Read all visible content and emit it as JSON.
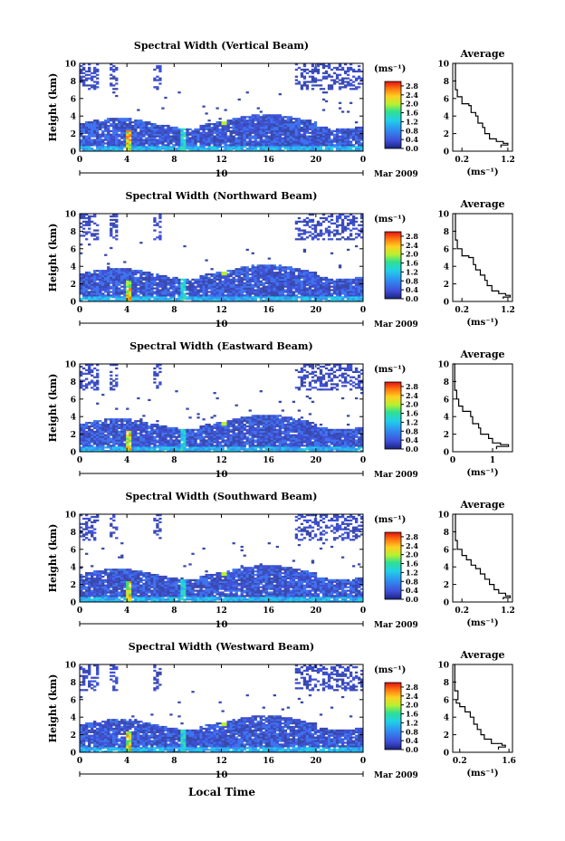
{
  "xlabel_bottom": "Local Time",
  "chart_data": [
    {
      "type": "heatmap",
      "title": "Spectral Width (Vertical Beam)",
      "ylabel": "Height (km)",
      "xlim": [
        0,
        24
      ],
      "ylim": [
        0,
        10
      ],
      "xticks": [
        "0",
        "4",
        "8",
        "12",
        "16",
        "20",
        "0"
      ],
      "yticks": [
        "0",
        "2",
        "4",
        "6",
        "8",
        "10"
      ],
      "date_center": "10",
      "date_right": "Mar 2009",
      "colorbar": {
        "unit": "(ms⁻¹)",
        "ticks": [
          "0.0",
          "0.4",
          "0.8",
          "1.2",
          "1.6",
          "2.0",
          "2.4",
          "2.8"
        ],
        "range": [
          0,
          3.0
        ]
      },
      "profile": {
        "title": "Average",
        "xlabel": "(ms⁻¹)",
        "xticks": [
          "0.2",
          "1.2"
        ],
        "yticks": [
          "0",
          "2",
          "4",
          "6",
          "8",
          "10"
        ],
        "xlim": [
          0,
          1.3
        ],
        "points": [
          [
            0.05,
            10
          ],
          [
            0.06,
            7
          ],
          [
            0.1,
            6.2
          ],
          [
            0.2,
            5.4
          ],
          [
            0.35,
            5.2
          ],
          [
            0.4,
            4.4
          ],
          [
            0.5,
            4.0
          ],
          [
            0.55,
            3.2
          ],
          [
            0.65,
            2.7
          ],
          [
            0.7,
            2.0
          ],
          [
            0.8,
            1.4
          ],
          [
            0.95,
            1.1
          ],
          [
            1.1,
            0.9
          ],
          [
            1.2,
            0.7
          ],
          [
            1.05,
            0.4
          ]
        ]
      }
    },
    {
      "type": "heatmap",
      "title": "Spectral Width (Northward Beam)",
      "ylabel": "Height (km)",
      "xlim": [
        0,
        24
      ],
      "ylim": [
        0,
        10
      ],
      "xticks": [
        "0",
        "4",
        "8",
        "12",
        "16",
        "20",
        "0"
      ],
      "yticks": [
        "0",
        "2",
        "4",
        "6",
        "8",
        "10"
      ],
      "date_center": "10",
      "date_right": "Mar 2009",
      "colorbar": {
        "unit": "(ms⁻¹)",
        "ticks": [
          "0.0",
          "0.4",
          "0.8",
          "1.2",
          "1.6",
          "2.0",
          "2.4",
          "2.8"
        ],
        "range": [
          0,
          3.0
        ]
      },
      "profile": {
        "title": "Average",
        "xlabel": "(ms⁻¹)",
        "xticks": [
          "0.2",
          "1.2"
        ],
        "yticks": [
          "0",
          "2",
          "4",
          "6",
          "8",
          "10"
        ],
        "xlim": [
          0,
          1.3
        ],
        "points": [
          [
            0.05,
            10
          ],
          [
            0.06,
            7
          ],
          [
            0.1,
            6.0
          ],
          [
            0.2,
            5.2
          ],
          [
            0.35,
            5.0
          ],
          [
            0.45,
            4.2
          ],
          [
            0.5,
            3.6
          ],
          [
            0.6,
            3.0
          ],
          [
            0.7,
            2.4
          ],
          [
            0.75,
            1.8
          ],
          [
            0.85,
            1.2
          ],
          [
            1.0,
            0.9
          ],
          [
            1.15,
            0.7
          ],
          [
            1.25,
            0.5
          ],
          [
            1.1,
            0.3
          ]
        ]
      }
    },
    {
      "type": "heatmap",
      "title": "Spectral Width (Eastward Beam)",
      "ylabel": "Height (km)",
      "xlim": [
        0,
        24
      ],
      "ylim": [
        0,
        10
      ],
      "xticks": [
        "0",
        "4",
        "8",
        "12",
        "16",
        "20",
        "0"
      ],
      "yticks": [
        "0",
        "2",
        "4",
        "6",
        "8",
        "10"
      ],
      "date_center": "10",
      "date_right": "Mar 2009",
      "colorbar": {
        "unit": "(ms⁻¹)",
        "ticks": [
          "0.0",
          "0.4",
          "0.8",
          "1.2",
          "1.6",
          "2.0",
          "2.4",
          "2.8"
        ],
        "range": [
          0,
          3.0
        ]
      },
      "profile": {
        "title": "Average",
        "xlabel": "(ms⁻¹)",
        "xticks": [
          "0",
          "1"
        ],
        "yticks": [
          "0",
          "2",
          "4",
          "6",
          "8",
          "10"
        ],
        "xlim": [
          0,
          1.5
        ],
        "points": [
          [
            0.02,
            10
          ],
          [
            0.05,
            7
          ],
          [
            0.1,
            6.0
          ],
          [
            0.15,
            5.2
          ],
          [
            0.25,
            4.6
          ],
          [
            0.45,
            4.0
          ],
          [
            0.5,
            3.2
          ],
          [
            0.65,
            2.7
          ],
          [
            0.7,
            2.0
          ],
          [
            0.9,
            1.5
          ],
          [
            1.0,
            1.0
          ],
          [
            1.2,
            0.8
          ],
          [
            1.4,
            0.6
          ],
          [
            1.1,
            0.3
          ]
        ]
      }
    },
    {
      "type": "heatmap",
      "title": "Spectral Width (Southward Beam)",
      "ylabel": "Height (km)",
      "xlim": [
        0,
        24
      ],
      "ylim": [
        0,
        10
      ],
      "xticks": [
        "0",
        "4",
        "8",
        "12",
        "16",
        "20",
        "0"
      ],
      "yticks": [
        "0",
        "2",
        "4",
        "6",
        "8",
        "10"
      ],
      "date_center": "10",
      "date_right": "Mar 2009",
      "colorbar": {
        "unit": "(ms⁻¹)",
        "ticks": [
          "0.0",
          "0.4",
          "0.8",
          "1.2",
          "1.6",
          "2.0",
          "2.4",
          "2.8"
        ],
        "range": [
          0,
          3.0
        ]
      },
      "profile": {
        "title": "Average",
        "xlabel": "(ms⁻¹)",
        "xticks": [
          "0.2",
          "1.2"
        ],
        "yticks": [
          "0",
          "2",
          "4",
          "6",
          "8",
          "10"
        ],
        "xlim": [
          0,
          1.3
        ],
        "points": [
          [
            0.05,
            10
          ],
          [
            0.06,
            7
          ],
          [
            0.1,
            6.0
          ],
          [
            0.2,
            5.3
          ],
          [
            0.3,
            4.8
          ],
          [
            0.4,
            4.2
          ],
          [
            0.5,
            3.8
          ],
          [
            0.6,
            3.2
          ],
          [
            0.7,
            2.6
          ],
          [
            0.8,
            2.0
          ],
          [
            0.9,
            1.4
          ],
          [
            1.0,
            1.0
          ],
          [
            1.15,
            0.7
          ],
          [
            1.25,
            0.5
          ],
          [
            1.1,
            0.3
          ]
        ]
      }
    },
    {
      "type": "heatmap",
      "title": "Spectral Width (Westward Beam)",
      "ylabel": "Height (km)",
      "xlim": [
        0,
        24
      ],
      "ylim": [
        0,
        10
      ],
      "xticks": [
        "0",
        "4",
        "8",
        "12",
        "16",
        "20",
        "0"
      ],
      "yticks": [
        "0",
        "2",
        "4",
        "6",
        "8",
        "10"
      ],
      "date_center": "10",
      "date_right": "Mar 2009",
      "colorbar": {
        "unit": "(ms⁻¹)",
        "ticks": [
          "0.0",
          "0.4",
          "0.8",
          "1.2",
          "1.6",
          "2.0",
          "2.4",
          "2.8"
        ],
        "range": [
          0,
          3.0
        ]
      },
      "profile": {
        "title": "Average",
        "xlabel": "(ms⁻¹)",
        "xticks": [
          "0.2",
          "1.6"
        ],
        "yticks": [
          "0",
          "2",
          "4",
          "6",
          "8",
          "10"
        ],
        "xlim": [
          0,
          1.7
        ],
        "points": [
          [
            0.05,
            10
          ],
          [
            0.06,
            7
          ],
          [
            0.15,
            6.0
          ],
          [
            0.1,
            5.6
          ],
          [
            0.2,
            5.2
          ],
          [
            0.35,
            4.6
          ],
          [
            0.5,
            4.0
          ],
          [
            0.6,
            3.2
          ],
          [
            0.7,
            2.6
          ],
          [
            0.8,
            2.0
          ],
          [
            0.9,
            1.5
          ],
          [
            1.1,
            1.0
          ],
          [
            1.4,
            0.8
          ],
          [
            1.5,
            0.6
          ],
          [
            1.3,
            0.3
          ]
        ]
      }
    }
  ]
}
